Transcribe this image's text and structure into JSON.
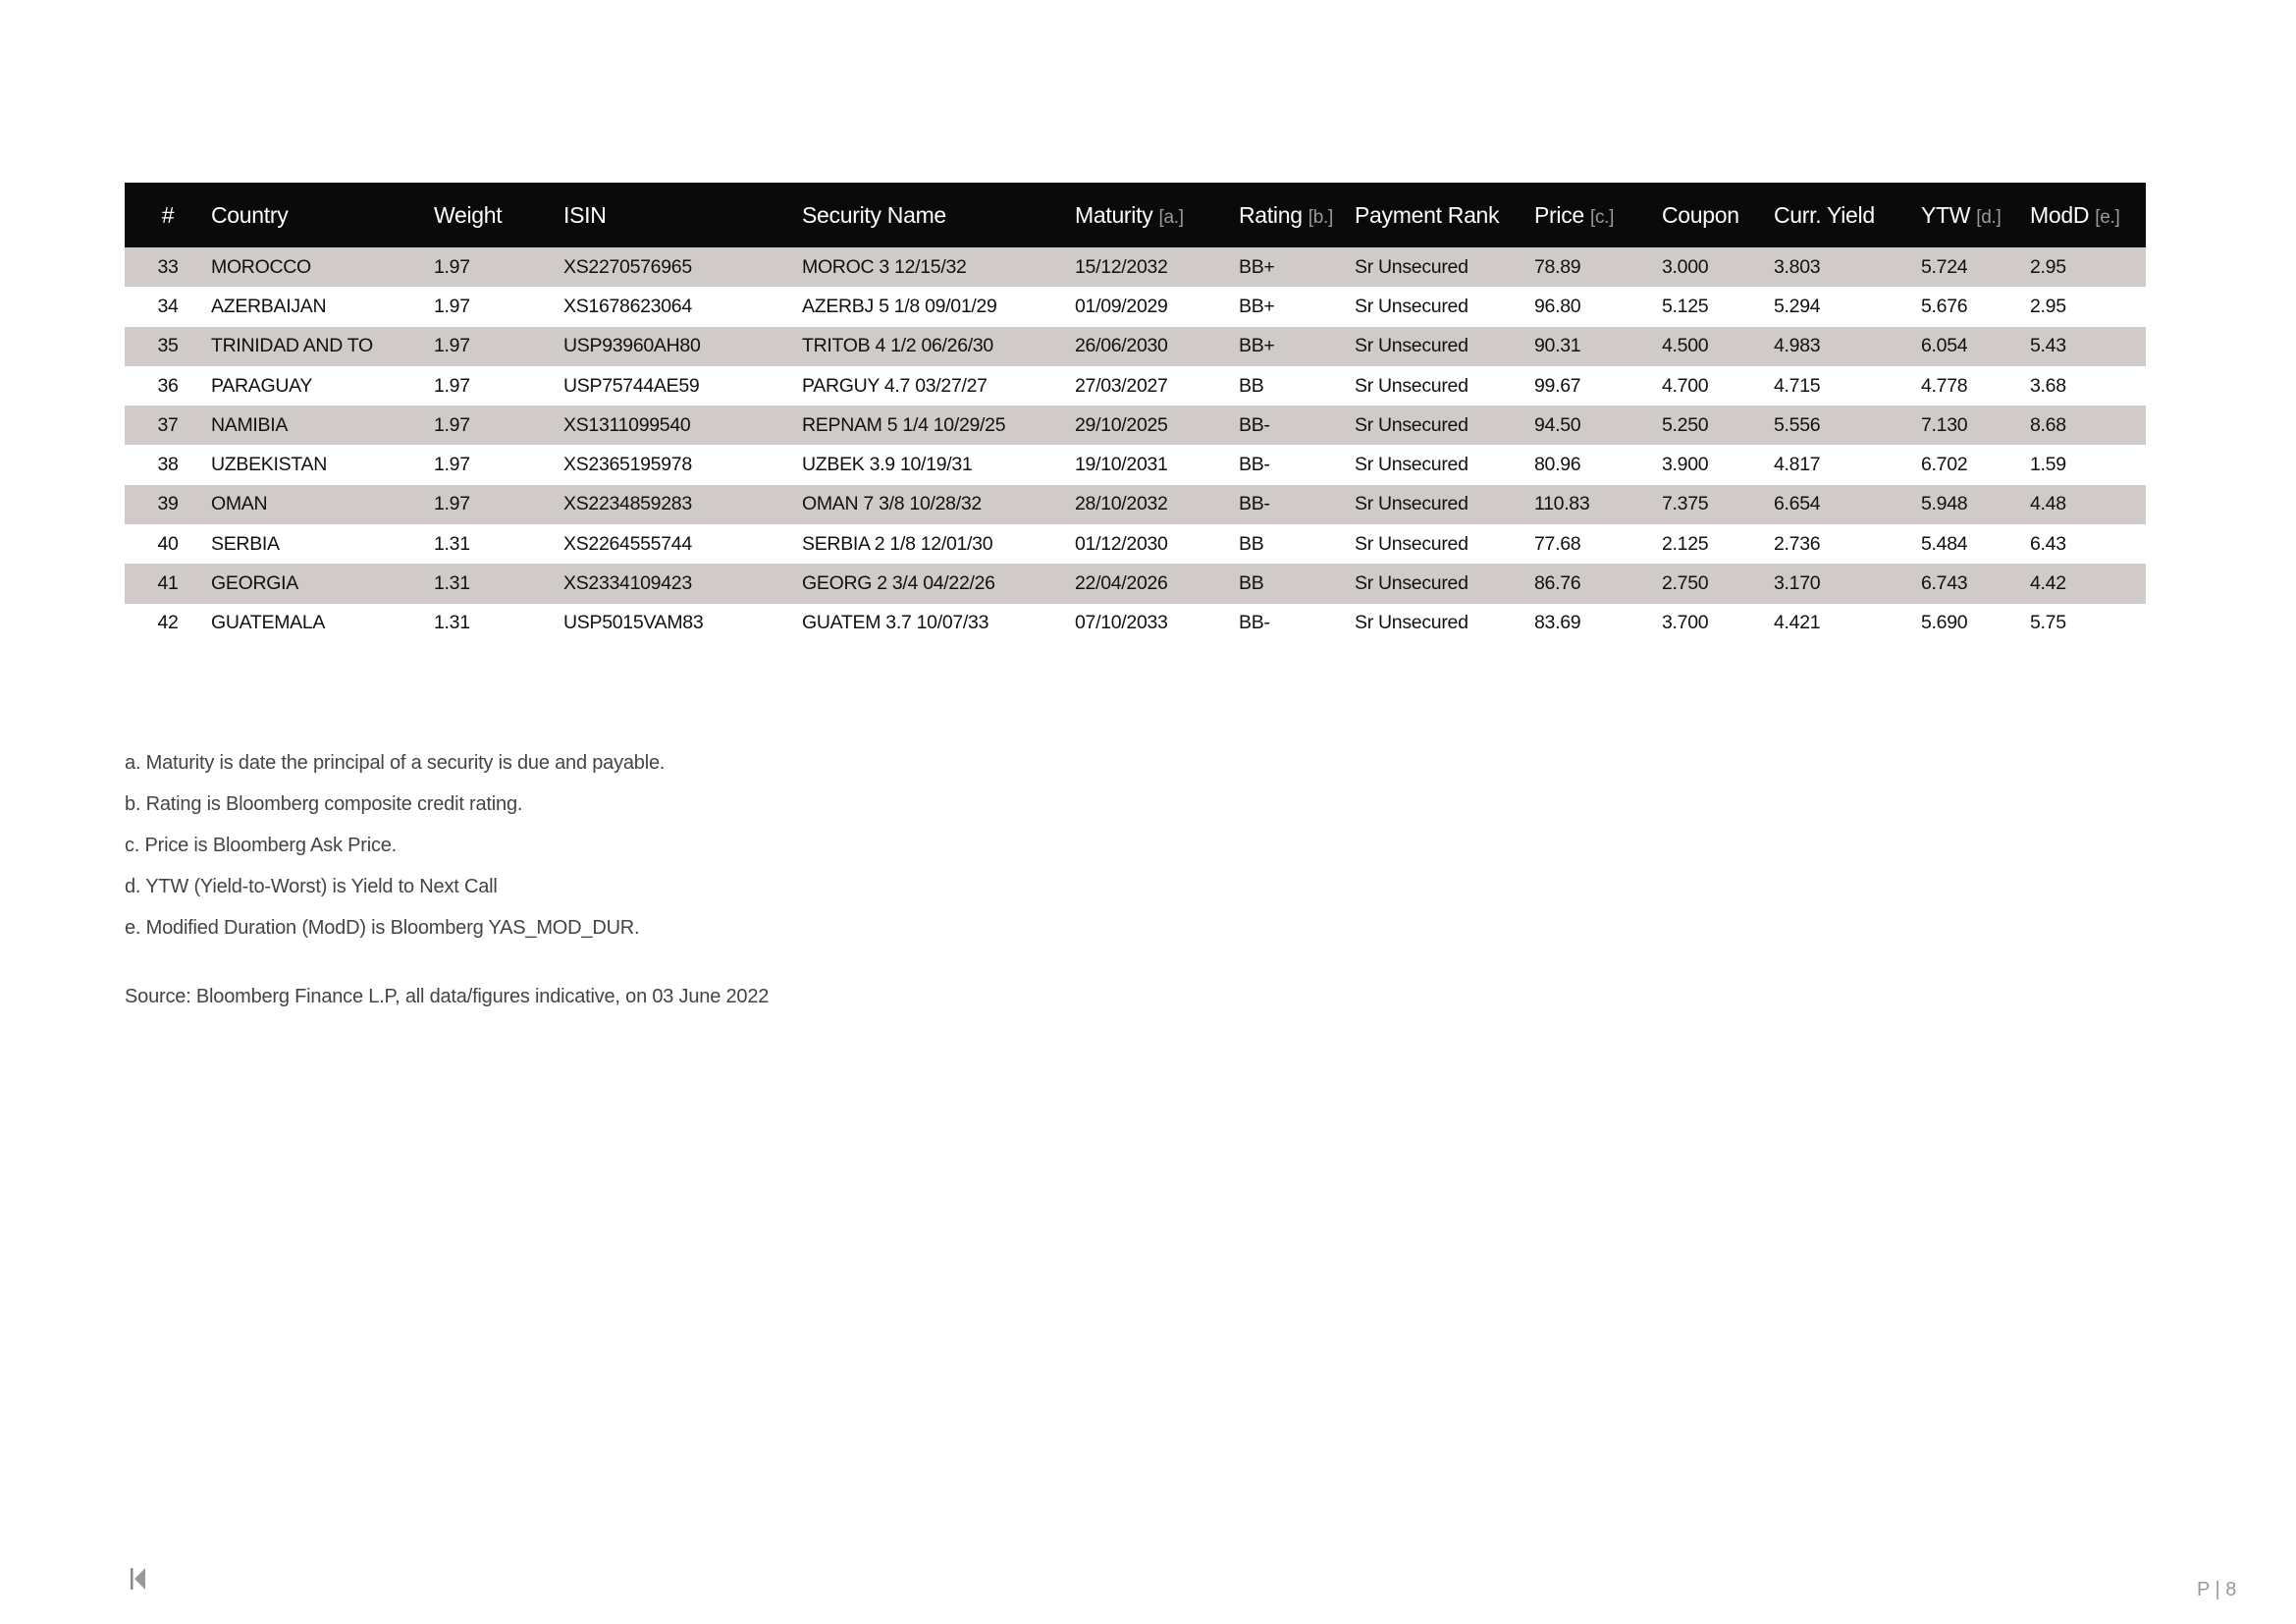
{
  "table": {
    "headers": [
      {
        "label": "#",
        "note": ""
      },
      {
        "label": "Country",
        "note": ""
      },
      {
        "label": "Weight",
        "note": ""
      },
      {
        "label": "ISIN",
        "note": ""
      },
      {
        "label": "Security Name",
        "note": ""
      },
      {
        "label": "Maturity",
        "note": "[a.]"
      },
      {
        "label": "Rating",
        "note": "[b.]"
      },
      {
        "label": "Payment Rank",
        "note": ""
      },
      {
        "label": "Price",
        "note": "[c.]"
      },
      {
        "label": "Coupon",
        "note": ""
      },
      {
        "label": "Curr. Yield",
        "note": ""
      },
      {
        "label": "YTW",
        "note": "[d.]"
      },
      {
        "label": "ModD",
        "note": "[e.]"
      }
    ],
    "rows": [
      [
        "33",
        "MOROCCO",
        "1.97",
        "XS2270576965",
        "MOROC 3 12/15/32",
        "15/12/2032",
        "BB+",
        "Sr Unsecured",
        "78.89",
        "3.000",
        "3.803",
        "5.724",
        "2.95"
      ],
      [
        "34",
        "AZERBAIJAN",
        "1.97",
        "XS1678623064",
        "AZERBJ 5 1/8 09/01/29",
        "01/09/2029",
        "BB+",
        "Sr Unsecured",
        "96.80",
        "5.125",
        "5.294",
        "5.676",
        "2.95"
      ],
      [
        "35",
        "TRINIDAD AND TO",
        "1.97",
        "USP93960AH80",
        "TRITOB 4 1/2 06/26/30",
        "26/06/2030",
        "BB+",
        "Sr Unsecured",
        "90.31",
        "4.500",
        "4.983",
        "6.054",
        "5.43"
      ],
      [
        "36",
        "PARAGUAY",
        "1.97",
        "USP75744AE59",
        "PARGUY 4.7 03/27/27",
        "27/03/2027",
        "BB",
        "Sr Unsecured",
        "99.67",
        "4.700",
        "4.715",
        "4.778",
        "3.68"
      ],
      [
        "37",
        "NAMIBIA",
        "1.97",
        "XS1311099540",
        "REPNAM 5 1/4 10/29/25",
        "29/10/2025",
        "BB-",
        "Sr Unsecured",
        "94.50",
        "5.250",
        "5.556",
        "7.130",
        "8.68"
      ],
      [
        "38",
        "UZBEKISTAN",
        "1.97",
        "XS2365195978",
        "UZBEK 3.9 10/19/31",
        "19/10/2031",
        "BB-",
        "Sr Unsecured",
        "80.96",
        "3.900",
        "4.817",
        "6.702",
        "1.59"
      ],
      [
        "39",
        "OMAN",
        "1.97",
        "XS2234859283",
        "OMAN 7 3/8 10/28/32",
        "28/10/2032",
        "BB-",
        "Sr Unsecured",
        "110.83",
        "7.375",
        "6.654",
        "5.948",
        "4.48"
      ],
      [
        "40",
        "SERBIA",
        "1.31",
        "XS2264555744",
        "SERBIA 2 1/8 12/01/30",
        "01/12/2030",
        "BB",
        "Sr Unsecured",
        "77.68",
        "2.125",
        "2.736",
        "5.484",
        "6.43"
      ],
      [
        "41",
        "GEORGIA",
        "1.31",
        "XS2334109423",
        "GEORG 2 3/4 04/22/26",
        "22/04/2026",
        "BB",
        "Sr Unsecured",
        "86.76",
        "2.750",
        "3.170",
        "6.743",
        "4.42"
      ],
      [
        "42",
        "GUATEMALA",
        "1.31",
        "USP5015VAM83",
        "GUATEM 3.7 10/07/33",
        "07/10/2033",
        "BB-",
        "Sr Unsecured",
        "83.69",
        "3.700",
        "4.421",
        "5.690",
        "5.75"
      ]
    ]
  },
  "notes": [
    "a. Maturity is date the principal of a security is due and payable.",
    "b. Rating is Bloomberg composite credit rating.",
    "c. Price is Bloomberg Ask Price.",
    "d. YTW (Yield-to-Worst) is Yield to Next Call",
    "e. Modified Duration (ModD) is Bloomberg YAS_MOD_DUR."
  ],
  "source": "Source: Bloomberg Finance L.P, all data/figures indicative, on 03 June 2022",
  "footer": {
    "page_label": "P | 8",
    "nav_icon": "skip-back-icon"
  },
  "colors": {
    "header_bg": "#0a0a0a",
    "stripe": "#d0cbc8",
    "note_gray": "#9a9a9a"
  }
}
